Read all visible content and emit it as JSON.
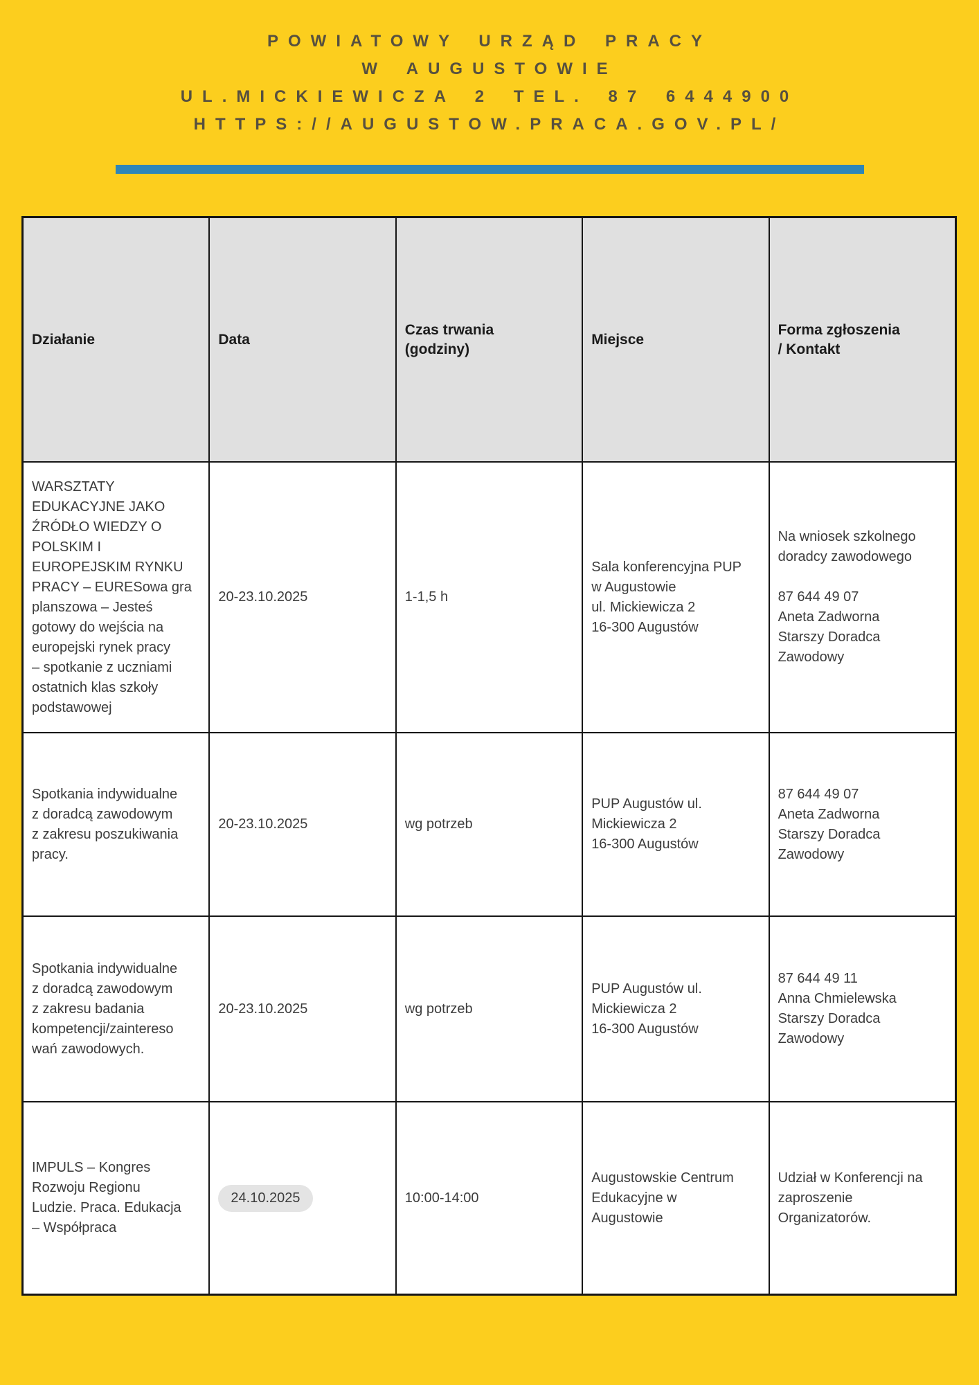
{
  "masthead": {
    "lines": [
      "POWIATOWY URZĄD PRACY",
      "W AUGUSTOWIE",
      "UL.MICKIEWICZA 2 TEL. 87 6444900",
      "HTTPS://AUGUSTOW.PRACA.GOV.PL/"
    ]
  },
  "colors": {
    "page_background": "#fcce1e",
    "divider_blue": "#2e86b8",
    "header_cell_background": "#e0e0e0",
    "body_cell_background": "#ffffff",
    "date_pill_background": "#e4e4e4",
    "masthead_text": "#57503f",
    "body_text": "#3c3c3c",
    "grid_line": "#161616"
  },
  "table": {
    "columns": [
      "Działanie",
      "Data",
      "Czas trwania\n(godziny)",
      "Miejsce",
      "Forma zgłoszenia\n/ Kontakt"
    ],
    "rows": [
      {
        "dzialanie": "WARSZTATY\nEDUKACYJNE JAKO\nŹRÓDŁO WIEDZY O\nPOLSKIM I\nEUROPEJSKIM RYNKU\nPRACY – EURESowa gra\nplanszowa – Jesteś\ngotowy do wejścia na\neuropejski rynek pracy\n– spotkanie z uczniami\nostatnich klas szkoły\npodstawowej",
        "data": "20-23.10.2025",
        "czas": "1-1,5 h",
        "miejsce": "Sala konferencyjna PUP\nw Augustowie\nul. Mickiewicza 2\n16-300 Augustów",
        "forma": "Na wniosek szkolnego\ndoradcy zawodowego\n\n87 644 49 07\nAneta Zadworna\nStarszy Doradca\nZawodowy"
      },
      {
        "dzialanie": "Spotkania indywidualne\nz doradcą zawodowym\nz zakresu poszukiwania\npracy.",
        "data": "20-23.10.2025",
        "czas": "wg potrzeb",
        "miejsce": "PUP Augustów ul.\nMickiewicza 2\n16-300 Augustów",
        "forma": "87 644 49 07\nAneta Zadworna\nStarszy Doradca\nZawodowy"
      },
      {
        "dzialanie": "Spotkania indywidualne\nz doradcą zawodowym\nz zakresu badania\nkompetencji/zaintereso\nwań zawodowych.",
        "data": "20-23.10.2025",
        "czas": "wg potrzeb",
        "miejsce": "PUP Augustów ul.\nMickiewicza 2\n16-300 Augustów",
        "forma": "87 644 49 11\nAnna Chmielewska\nStarszy Doradca\nZawodowy"
      },
      {
        "dzialanie": "IMPULS – Kongres\nRozwoju Regionu\nLudzie. Praca. Edukacja\n– Współpraca",
        "data": "24.10.2025",
        "czas": "10:00-14:00",
        "miejsce": "Augustowskie Centrum\nEdukacyjne w\nAugustowie",
        "forma": "Udział w Konferencji na\nzaproszenie\nOrganizatorów."
      }
    ]
  }
}
